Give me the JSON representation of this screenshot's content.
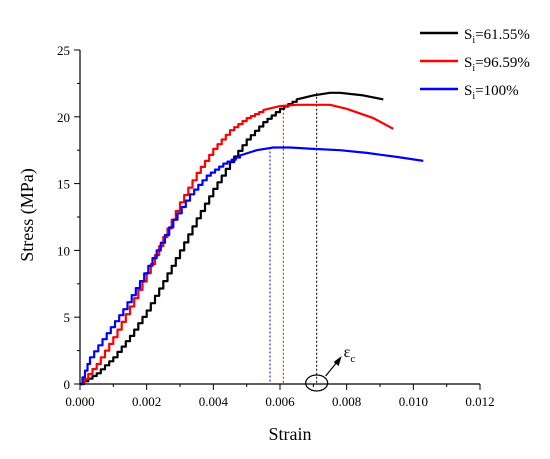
{
  "chart_data": {
    "type": "line",
    "xlabel": "Strain",
    "ylabel": "Stress (MPa)",
    "xlim": [
      0.0,
      0.012
    ],
    "ylim": [
      0,
      25
    ],
    "xticks": [
      "0.000",
      "0.002",
      "0.004",
      "0.006",
      "0.008",
      "0.010",
      "0.012"
    ],
    "yticks": [
      "0",
      "5",
      "10",
      "15",
      "20",
      "25"
    ],
    "grid": false,
    "legend_position": "top-right",
    "series": [
      {
        "name": "Si=61.55%",
        "name_main": "S",
        "name_sub": "i",
        "name_tail": "=61.55%",
        "color": "#000000",
        "x": [
          0.0,
          0.0005,
          0.001,
          0.0015,
          0.002,
          0.0025,
          0.003,
          0.0035,
          0.004,
          0.0045,
          0.005,
          0.0055,
          0.006,
          0.0065,
          0.007,
          0.0075,
          0.0078,
          0.0085,
          0.0091
        ],
        "y": [
          0.0,
          0.8,
          2.0,
          3.6,
          5.5,
          7.7,
          10.0,
          12.4,
          14.6,
          16.6,
          18.3,
          19.6,
          20.6,
          21.3,
          21.6,
          21.8,
          21.8,
          21.6,
          21.3
        ]
      },
      {
        "name": "Si=96.59%",
        "name_main": "S",
        "name_sub": "i",
        "name_tail": "=96.59%",
        "color": "#ff0000",
        "x": [
          0.0,
          0.0005,
          0.001,
          0.0015,
          0.002,
          0.0025,
          0.003,
          0.0035,
          0.004,
          0.0045,
          0.005,
          0.0055,
          0.006,
          0.0065,
          0.007,
          0.0075,
          0.008,
          0.0088,
          0.0094
        ],
        "y": [
          0.0,
          1.5,
          3.5,
          5.8,
          8.3,
          11.0,
          13.6,
          15.8,
          17.6,
          19.0,
          19.9,
          20.5,
          20.8,
          20.9,
          20.9,
          20.9,
          20.6,
          19.9,
          19.1
        ]
      },
      {
        "name": "Si=100%",
        "name_main": "S",
        "name_sub": "i",
        "name_tail": "=100%",
        "color": "#0000ff",
        "x": [
          0.0,
          0.0003,
          0.0008,
          0.0013,
          0.0018,
          0.0023,
          0.0028,
          0.0033,
          0.0038,
          0.0043,
          0.0048,
          0.0053,
          0.0058,
          0.0063,
          0.007,
          0.0078,
          0.0086,
          0.0095,
          0.0103
        ],
        "y": [
          0.0,
          2.0,
          3.8,
          5.6,
          7.7,
          10.0,
          12.3,
          14.2,
          15.6,
          16.5,
          17.1,
          17.5,
          17.7,
          17.7,
          17.6,
          17.5,
          17.3,
          17.0,
          16.7
        ]
      }
    ],
    "peak_markers": [
      {
        "series": "Si=100%",
        "x": 0.0057,
        "y": 17.7,
        "color": "#0000ff"
      },
      {
        "series": "Si=96.59%",
        "x": 0.0061,
        "y": 20.9,
        "color": "#ff0000"
      },
      {
        "series": "Si=61.55%",
        "x": 0.0071,
        "y": 21.8,
        "color": "#000000"
      }
    ],
    "annotation": {
      "symbol": "ε",
      "subscript": "c",
      "x": 0.0071,
      "y": 0
    }
  }
}
